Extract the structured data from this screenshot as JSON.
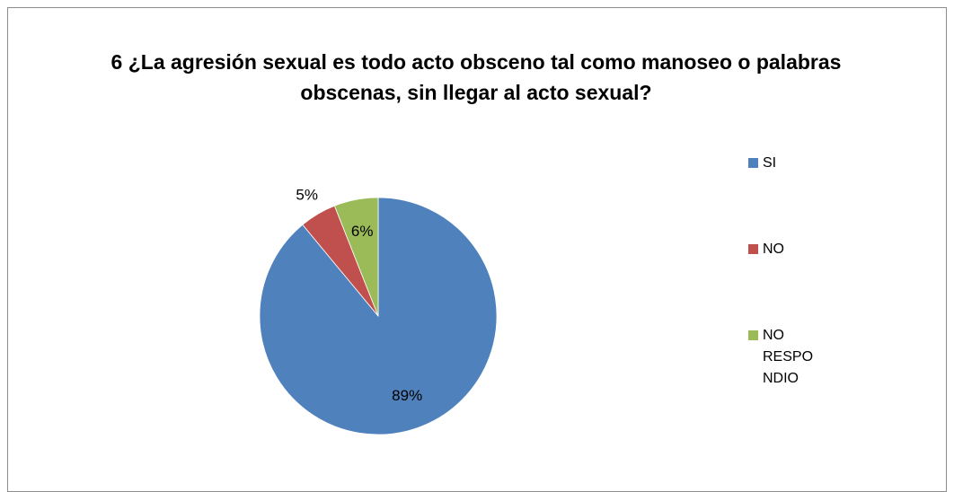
{
  "chart_data": {
    "type": "pie",
    "title": "6  ¿La agresión sexual es todo acto obsceno tal como manoseo o palabras obscenas, sin llegar al acto sexual?",
    "categories": [
      "SI",
      "NO",
      "NO RESPONDIO"
    ],
    "values": [
      89,
      5,
      6
    ],
    "value_labels": [
      "89%",
      "5%",
      "6%"
    ],
    "colors": [
      "#4f81bd",
      "#c0504d",
      "#9bbb59"
    ],
    "legend": "right"
  }
}
